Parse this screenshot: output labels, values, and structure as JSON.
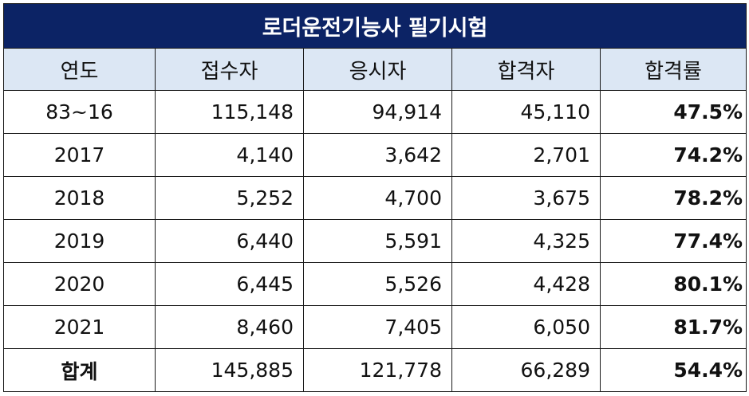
{
  "title": "로더운전기능사 필기시험",
  "headers": [
    "연도",
    "접수자",
    "응시자",
    "합격자",
    "합격률"
  ],
  "rows": [
    {
      "year": "83~16",
      "applicants": "115,148",
      "examinees": "94,914",
      "passed": "45,110",
      "rate": "47.5%"
    },
    {
      "year": "2017",
      "applicants": "4,140",
      "examinees": "3,642",
      "passed": "2,701",
      "rate": "74.2%"
    },
    {
      "year": "2018",
      "applicants": "5,252",
      "examinees": "4,700",
      "passed": "3,675",
      "rate": "78.2%"
    },
    {
      "year": "2019",
      "applicants": "6,440",
      "examinees": "5,591",
      "passed": "4,325",
      "rate": "77.4%"
    },
    {
      "year": "2020",
      "applicants": "6,445",
      "examinees": "5,526",
      "passed": "4,428",
      "rate": "80.1%"
    },
    {
      "year": "2021",
      "applicants": "8,460",
      "examinees": "7,405",
      "passed": "6,050",
      "rate": "81.7%"
    }
  ],
  "total": {
    "label": "합계",
    "applicants": "145,885",
    "examinees": "121,778",
    "passed": "66,289",
    "rate": "54.4%"
  },
  "colors": {
    "title_bg": "#0c2365",
    "header_bg": "#dce7f4",
    "border": "#1a1a1a"
  }
}
